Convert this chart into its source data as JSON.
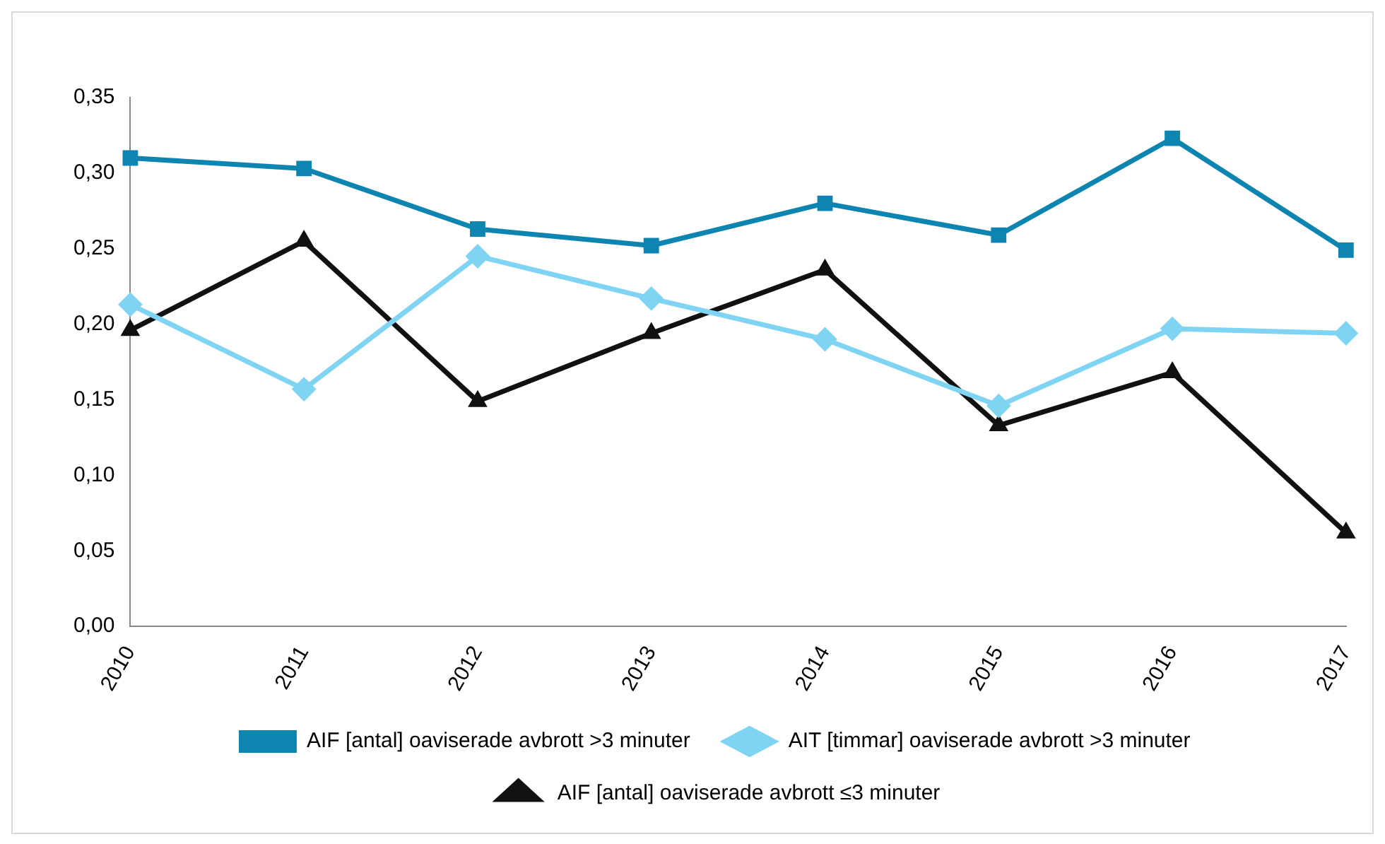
{
  "chart_data": {
    "type": "line",
    "categories": [
      "2010",
      "2011",
      "2012",
      "2013",
      "2014",
      "2015",
      "2016",
      "2017"
    ],
    "series": [
      {
        "name": "AIF [antal] oaviserade avbrott >3 minuter",
        "color": "#0e84b0",
        "marker": "square",
        "values": [
          0.31,
          0.303,
          0.263,
          0.252,
          0.28,
          0.259,
          0.323,
          0.249
        ]
      },
      {
        "name": "AIT [timmar] oaviserade avbrott >3 minuter",
        "color": "#7fd3f3",
        "marker": "diamond",
        "values": [
          0.213,
          0.157,
          0.245,
          0.217,
          0.19,
          0.146,
          0.197,
          0.194
        ]
      },
      {
        "name": "AIF [antal] oaviserade avbrott ≤3 minuter",
        "color": "#111111",
        "marker": "triangle",
        "values": [
          0.196,
          0.255,
          0.149,
          0.194,
          0.236,
          0.133,
          0.168,
          0.062
        ]
      }
    ],
    "ylim": [
      0,
      0.35
    ],
    "yticks": [
      {
        "value": 0,
        "label": "0,00"
      },
      {
        "value": 0.05,
        "label": "0,05"
      },
      {
        "value": 0.1,
        "label": "0,10"
      },
      {
        "value": 0.15,
        "label": "0,15"
      },
      {
        "value": 0.2,
        "label": "0,20"
      },
      {
        "value": 0.25,
        "label": "0,25"
      },
      {
        "value": 0.3,
        "label": "0,30"
      },
      {
        "value": 0.35,
        "label": "0,35"
      }
    ],
    "grid": false,
    "legend": "bottom",
    "line_style": "solid"
  }
}
